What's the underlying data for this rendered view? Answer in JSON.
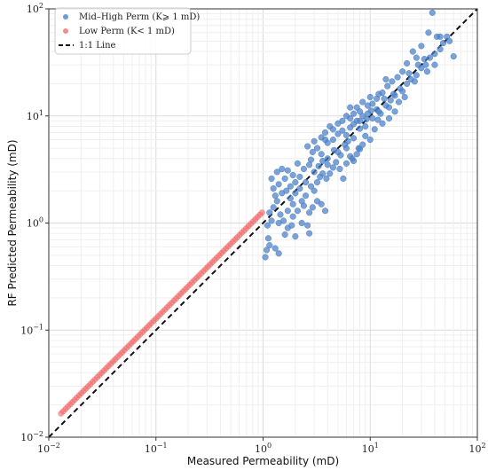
{
  "chart_data": {
    "type": "scatter",
    "xlabel": "Measured Permeability (mD)",
    "ylabel": "RF Predicted Permeability (mD)",
    "xscale": "log",
    "yscale": "log",
    "xlim": [
      0.01,
      100
    ],
    "ylim": [
      0.01,
      100
    ],
    "grid": true,
    "legend_position": "top-left",
    "ticks": [
      {
        "value": 0.01,
        "label_base": "10",
        "label_exp": "−2"
      },
      {
        "value": 0.1,
        "label_base": "10",
        "label_exp": "−1"
      },
      {
        "value": 1,
        "label_base": "10",
        "label_exp": "0"
      },
      {
        "value": 10,
        "label_base": "10",
        "label_exp": "1"
      },
      {
        "value": 100,
        "label_base": "10",
        "label_exp": "2"
      }
    ],
    "series": [
      {
        "name": "Mid–High Perm (K⩾ 1 mD)",
        "color": "#4a7fc8",
        "kind": "points",
        "points": [
          [
            1.05,
            0.48
          ],
          [
            1.08,
            0.56
          ],
          [
            1.15,
            0.62
          ],
          [
            1.12,
            0.72
          ],
          [
            1.3,
            0.58
          ],
          [
            1.4,
            0.52
          ],
          [
            1.1,
            0.95
          ],
          [
            1.2,
            1.05
          ],
          [
            1.15,
            1.25
          ],
          [
            1.25,
            1.4
          ],
          [
            1.35,
            1.6
          ],
          [
            1.45,
            1.2
          ],
          [
            1.55,
            1.05
          ],
          [
            1.7,
            0.9
          ],
          [
            1.6,
            0.78
          ],
          [
            1.85,
            0.95
          ],
          [
            1.9,
            1.15
          ],
          [
            2.1,
            1.3
          ],
          [
            2.3,
            1.0
          ],
          [
            2.0,
            0.75
          ],
          [
            2.6,
            0.95
          ],
          [
            2.7,
            1.25
          ],
          [
            2.4,
            1.45
          ],
          [
            1.3,
            1.8
          ],
          [
            1.25,
            2.1
          ],
          [
            1.4,
            2.3
          ],
          [
            1.5,
            1.9
          ],
          [
            1.65,
            2.0
          ],
          [
            1.8,
            1.7
          ],
          [
            2.0,
            1.9
          ],
          [
            2.2,
            2.1
          ],
          [
            2.5,
            2.4
          ],
          [
            2.8,
            2.2
          ],
          [
            3.0,
            2.0
          ],
          [
            3.2,
            1.6
          ],
          [
            3.5,
            1.5
          ],
          [
            3.8,
            1.3
          ],
          [
            2.9,
            1.4
          ],
          [
            1.2,
            2.6
          ],
          [
            1.35,
            3.0
          ],
          [
            1.5,
            3.2
          ],
          [
            1.7,
            3.1
          ],
          [
            1.9,
            2.8
          ],
          [
            2.2,
            2.7
          ],
          [
            2.4,
            3.2
          ],
          [
            2.7,
            3.5
          ],
          [
            3.0,
            3.0
          ],
          [
            3.3,
            3.4
          ],
          [
            3.6,
            2.9
          ],
          [
            3.9,
            2.6
          ],
          [
            4.2,
            2.9
          ],
          [
            4.5,
            3.3
          ],
          [
            4.8,
            3.7
          ],
          [
            5.2,
            3.2
          ],
          [
            5.6,
            2.6
          ],
          [
            6.0,
            3.6
          ],
          [
            6.5,
            4.2
          ],
          [
            7.0,
            3.8
          ],
          [
            7.5,
            4.4
          ],
          [
            8.0,
            4.9
          ],
          [
            8.5,
            5.4
          ],
          [
            4.0,
            4.0
          ],
          [
            3.5,
            4.4
          ],
          [
            3.2,
            5.0
          ],
          [
            2.9,
            4.6
          ],
          [
            2.6,
            5.2
          ],
          [
            3.0,
            5.8
          ],
          [
            3.5,
            6.3
          ],
          [
            4.0,
            5.6
          ],
          [
            4.5,
            6.0
          ],
          [
            5.0,
            6.8
          ],
          [
            5.5,
            7.3
          ],
          [
            6.0,
            6.6
          ],
          [
            6.5,
            7.8
          ],
          [
            7.0,
            8.4
          ],
          [
            7.5,
            9.0
          ],
          [
            8.0,
            7.6
          ],
          [
            8.5,
            10.0
          ],
          [
            9.5,
            10.5
          ],
          [
            10.5,
            9.5
          ],
          [
            11.5,
            11.5
          ],
          [
            12.5,
            10.5
          ],
          [
            14.0,
            12.5
          ],
          [
            15.5,
            14.0
          ],
          [
            17.0,
            15.5
          ],
          [
            18.5,
            13.5
          ],
          [
            20.0,
            17.0
          ],
          [
            22.0,
            20.0
          ],
          [
            24.0,
            22.0
          ],
          [
            27.0,
            24.0
          ],
          [
            30.0,
            28.0
          ],
          [
            33.0,
            30.0
          ],
          [
            36.0,
            35.0
          ],
          [
            40.0,
            38.0
          ],
          [
            45.0,
            42.0
          ],
          [
            48.0,
            48.0
          ],
          [
            52.0,
            55.0
          ],
          [
            55.0,
            50.0
          ],
          [
            60.0,
            36.0
          ],
          [
            38.0,
            92.0
          ],
          [
            42.0,
            55.0
          ],
          [
            35.0,
            60.0
          ],
          [
            30.0,
            45.0
          ],
          [
            27.0,
            35.0
          ],
          [
            25.0,
            40.0
          ],
          [
            22.0,
            31.0
          ],
          [
            20.0,
            26.0
          ],
          [
            18.0,
            23.0
          ],
          [
            16.0,
            21.0
          ],
          [
            14.5,
            19.0
          ],
          [
            13.0,
            16.5
          ],
          [
            11.5,
            14.5
          ],
          [
            10.5,
            13.0
          ],
          [
            9.5,
            12.5
          ],
          [
            8.5,
            13.5
          ],
          [
            7.5,
            12.0
          ],
          [
            7.0,
            10.5
          ],
          [
            6.5,
            9.5
          ],
          [
            6.0,
            10.0
          ],
          [
            5.5,
            9.0
          ],
          [
            5.0,
            8.5
          ],
          [
            4.5,
            7.5
          ],
          [
            4.2,
            8.0
          ],
          [
            3.8,
            7.0
          ],
          [
            9.0,
            6.5
          ],
          [
            11.0,
            7.5
          ],
          [
            13.0,
            8.5
          ],
          [
            15.0,
            9.5
          ],
          [
            17.0,
            11.0
          ],
          [
            12.0,
            11.0
          ],
          [
            8.0,
            9.0
          ],
          [
            9.0,
            8.0
          ],
          [
            10.0,
            6.0
          ],
          [
            7.0,
            6.2
          ],
          [
            6.0,
            5.0
          ],
          [
            5.0,
            4.6
          ],
          [
            4.6,
            4.8
          ],
          [
            4.0,
            3.5
          ],
          [
            3.6,
            3.8
          ],
          [
            6.8,
            4.0
          ],
          [
            7.8,
            5.0
          ],
          [
            5.8,
            5.4
          ],
          [
            2.0,
            2.4
          ],
          [
            2.3,
            1.6
          ],
          [
            1.7,
            1.3
          ],
          [
            1.9,
            1.5
          ],
          [
            1.4,
            1.0
          ],
          [
            3.2,
            2.4
          ],
          [
            3.4,
            2.7
          ],
          [
            2.1,
            3.6
          ],
          [
            1.6,
            2.6
          ],
          [
            5.3,
            4.3
          ],
          [
            6.2,
            5.8
          ],
          [
            9.2,
            9.3
          ],
          [
            10.2,
            11.2
          ],
          [
            11.8,
            9.2
          ],
          [
            13.5,
            14.5
          ],
          [
            15.0,
            12.0
          ],
          [
            16.5,
            16.0
          ],
          [
            19.0,
            18.0
          ],
          [
            21.0,
            15.0
          ],
          [
            23.0,
            25.0
          ],
          [
            26.0,
            21.0
          ],
          [
            28.0,
            30.0
          ],
          [
            32.0,
            34.0
          ],
          [
            34.0,
            26.0
          ],
          [
            45.0,
            55.0
          ],
          [
            40.0,
            30.0
          ],
          [
            12.0,
            16.0
          ],
          [
            14.0,
            22.0
          ],
          [
            10.0,
            15.0
          ],
          [
            8.0,
            11.0
          ],
          [
            6.5,
            12.0
          ],
          [
            3.8,
            6.0
          ],
          [
            2.8,
            3.9
          ],
          [
            1.8,
            2.2
          ],
          [
            2.5,
            1.8
          ],
          [
            2.7,
            0.8
          ]
        ]
      },
      {
        "name": "Low Perm (K< 1 mD)",
        "color": "#ef6464",
        "kind": "log-spaced-line",
        "x_start": 0.013,
        "x_end": 0.98,
        "count": 90,
        "ratio": 1.28
      },
      {
        "name": "1:1 Line",
        "color": "#111111",
        "kind": "line",
        "style": "dashed",
        "from": [
          0.01,
          0.01
        ],
        "to": [
          100,
          100
        ]
      }
    ]
  }
}
